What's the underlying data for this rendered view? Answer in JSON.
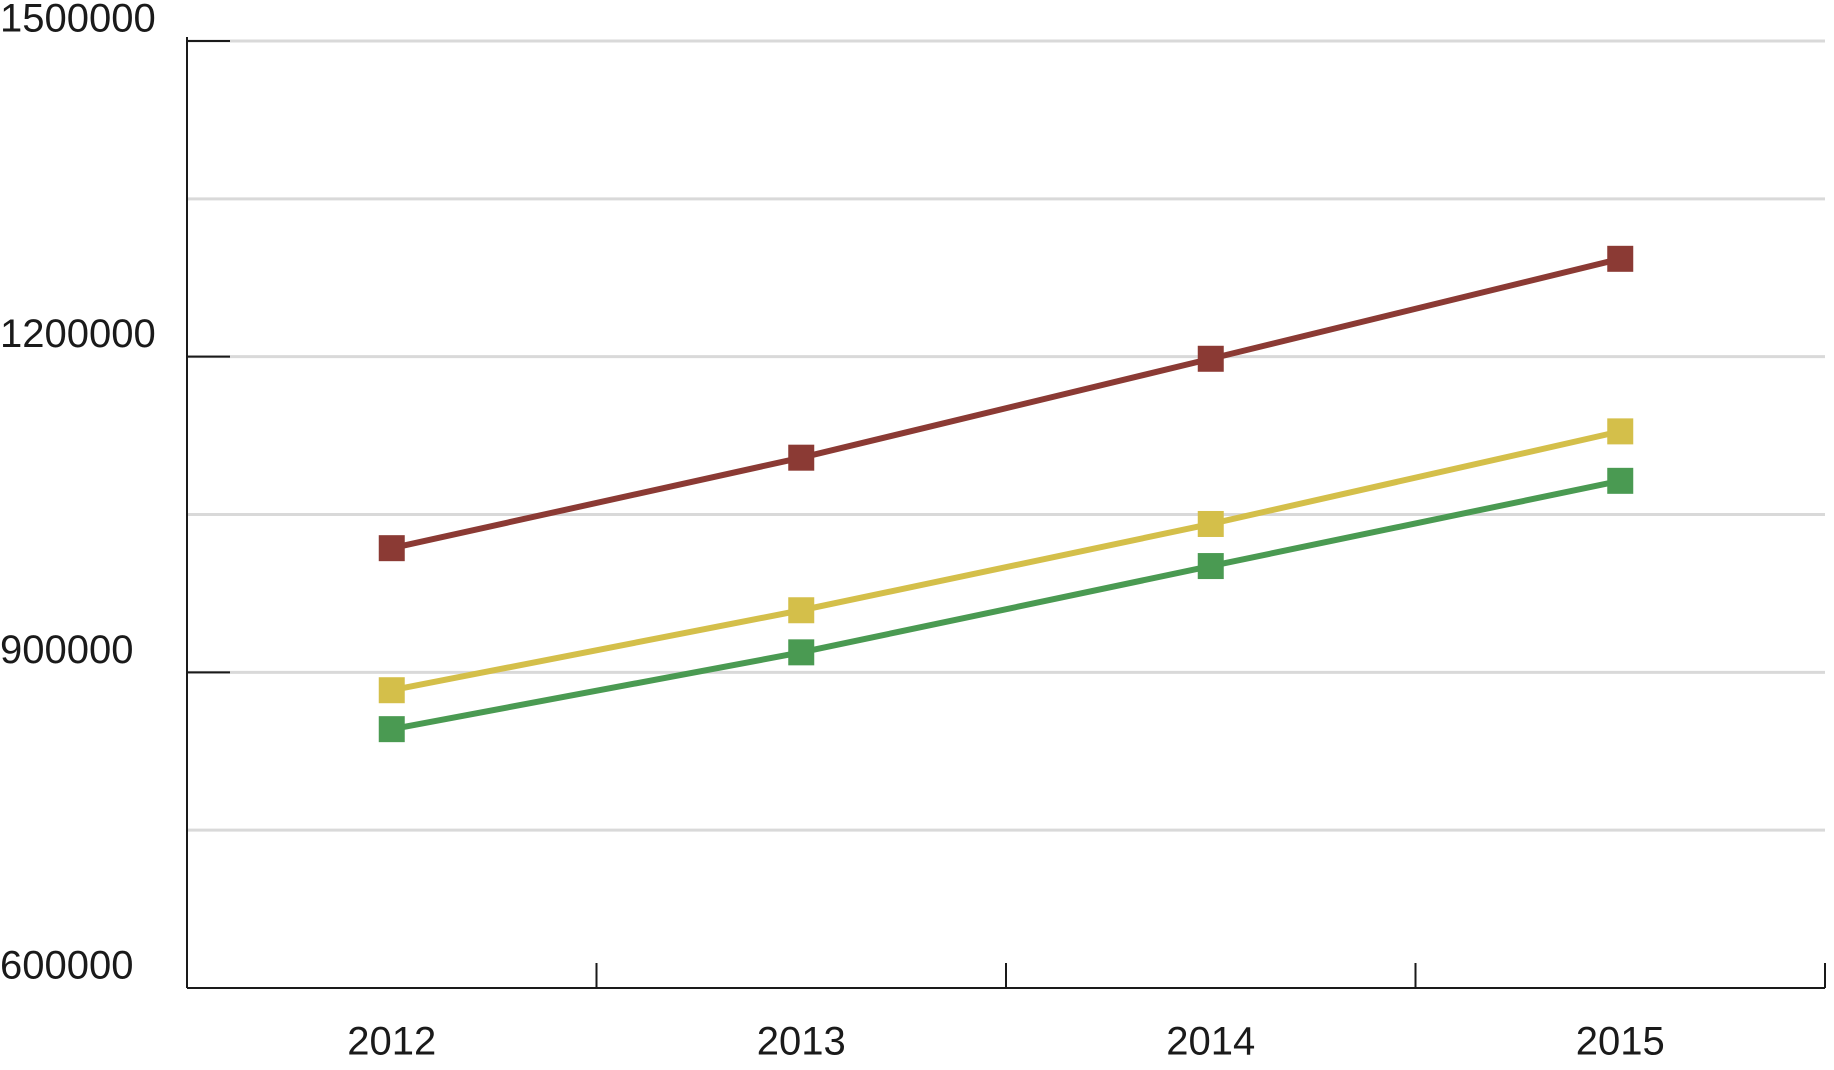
{
  "chart_data": {
    "type": "line",
    "categories": [
      "2012",
      "2013",
      "2014",
      "2015"
    ],
    "series": [
      {
        "color": "#8b3a34",
        "values": [
          1018000,
          1104000,
          1198000,
          1293000
        ]
      },
      {
        "color": "#d4bf4a",
        "values": [
          883000,
          959000,
          1041000,
          1129000
        ]
      },
      {
        "color": "#4a9a52",
        "values": [
          846000,
          919000,
          1001000,
          1082000
        ]
      }
    ],
    "ylim": [
      600000,
      1500000
    ],
    "yticks": [
      600000,
      900000,
      1200000,
      1500000
    ],
    "minor_yticks": [
      750000,
      1050000,
      1350000
    ],
    "grid": true
  }
}
